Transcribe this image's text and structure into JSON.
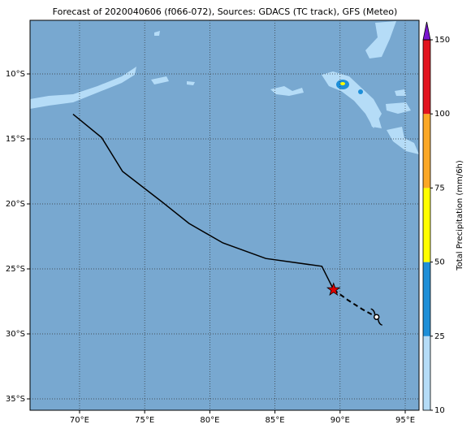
{
  "chart_data": {
    "type": "map",
    "title": "Forecast of 2020040606 (f066-072), Sources: GDACS (TC track), GFS (Meteo)",
    "xlim": [
      66.2,
      96.06
    ],
    "ylim": [
      -35.875,
      -5.875
    ],
    "xticks": [
      {
        "value": 70,
        "label": "70°E"
      },
      {
        "value": 75,
        "label": "75°E"
      },
      {
        "value": 80,
        "label": "80°E"
      },
      {
        "value": 85,
        "label": "85°E"
      },
      {
        "value": 90,
        "label": "90°E"
      },
      {
        "value": 95,
        "label": "95°E"
      }
    ],
    "yticks": [
      {
        "value": -10,
        "label": "10°S"
      },
      {
        "value": -15,
        "label": "15°S"
      },
      {
        "value": -20,
        "label": "20°S"
      },
      {
        "value": -25,
        "label": "25°S"
      },
      {
        "value": -30,
        "label": "30°S"
      },
      {
        "value": -35,
        "label": "35°S"
      }
    ],
    "grid": true,
    "series": [
      {
        "x": [
          69.5,
          71.7,
          73.3,
          76.4,
          78.4,
          81.0,
          84.3,
          88.6,
          89.5
        ],
        "values": [
          -13.1,
          -14.9,
          -17.5,
          -19.9,
          -21.5,
          -23.0,
          -24.2,
          -24.8,
          -26.6
        ],
        "color": "#000000",
        "style": "solid"
      },
      {
        "x": [
          89.5,
          90.6,
          91.7,
          92.6
        ],
        "values": [
          -26.6,
          -27.4,
          -28.1,
          -28.6
        ],
        "color": "#000000",
        "style": "dashed"
      }
    ],
    "current_position": {
      "x": 89.5,
      "y": -26.6,
      "color": "#e00000"
    },
    "storm_symbol": {
      "x": 92.8,
      "y": -28.7
    },
    "colorbar": {
      "label": "Total Precipitation (mm/6h)",
      "levels": [
        10,
        25,
        50,
        75,
        100,
        150
      ],
      "colors": [
        "#b5dcf7",
        "#1e8fd8",
        "#ffff00",
        "#fba826",
        "#e2141e"
      ],
      "extend_color": "#7b16d0"
    }
  }
}
